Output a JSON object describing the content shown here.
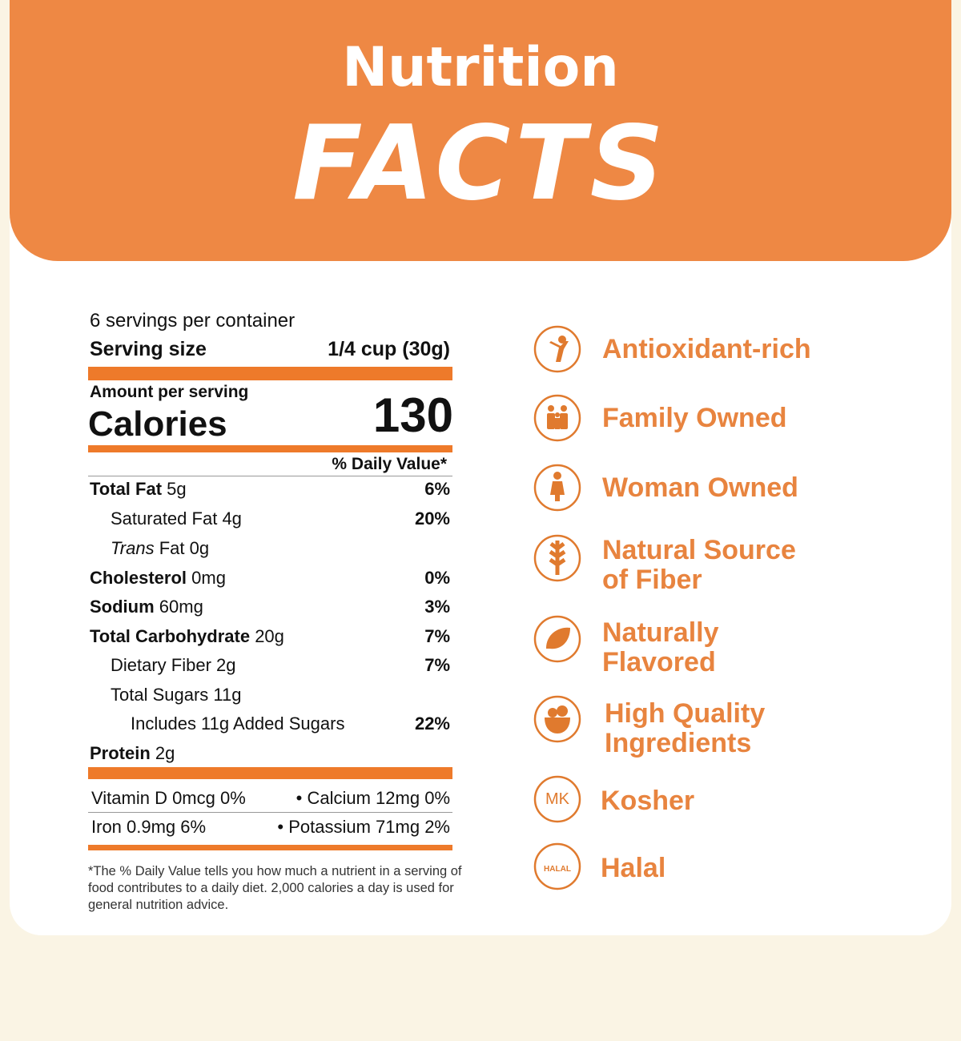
{
  "header": {
    "title_line1": "Nutrition",
    "title_line2": "FACTS"
  },
  "label": {
    "servings_per_container": "6 servings per container",
    "serving_size_label": "Serving size",
    "serving_size": "1/4 cup (30g)",
    "amount_per_serving": "Amount per serving",
    "calories_label": "Calories",
    "calories": "130",
    "daily_value_header": "% Daily Value*",
    "nutrients": [
      {
        "name": "Total Fat",
        "amount": "5g",
        "dv": "6%"
      },
      {
        "name": "Saturated Fat",
        "amount": "4g",
        "dv": "20%"
      },
      {
        "italic": "Trans",
        "name": "Fat",
        "amount": "0g"
      },
      {
        "name": "Cholesterol",
        "amount": "0mg",
        "dv": "0%"
      },
      {
        "name": "Sodium",
        "amount": "60mg",
        "dv": "3%"
      },
      {
        "name": "Total Carbohydrate",
        "amount": "20g",
        "dv": "7%"
      },
      {
        "name": "Dietary Fiber",
        "amount": "2g",
        "dv": "7%"
      },
      {
        "name": "Total Sugars",
        "amount": "11g"
      },
      {
        "name": "Includes 11g Added Sugars",
        "dv": "22%"
      },
      {
        "name": "Protein",
        "amount": "2g"
      }
    ],
    "vitamins": [
      "Vitamin D 0mcg 0%",
      "• Calcium 12mg 0%",
      "Iron 0.9mg 6%",
      "• Potassium 71mg 2%"
    ],
    "footnote": "*The % Daily Value tells you how much a nutrient in a serving of food contributes to a daily diet. 2,000 calories a day is used for general nutrition advice."
  },
  "features": [
    [
      "Antioxidant-rich"
    ],
    [
      "Family Owned"
    ],
    [
      "Woman Owned"
    ],
    [
      "Natural Source",
      "of Fiber"
    ],
    [
      "Naturally",
      "Flavored"
    ],
    [
      "High Quality",
      "Ingredients"
    ],
    [
      "Kosher"
    ],
    [
      "Halal"
    ]
  ]
}
